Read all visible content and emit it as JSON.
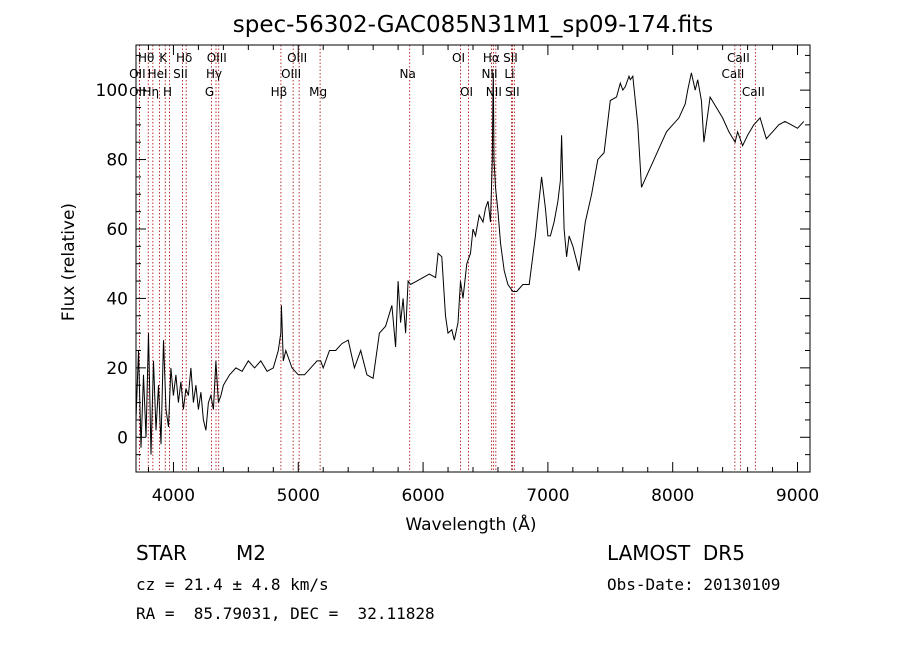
{
  "chart_data": {
    "type": "line",
    "title": "spec-56302-GAC085N31M1_sp09-174.fits",
    "xlabel": "Wavelength (Å)",
    "ylabel": "Flux (relative)",
    "xlim": [
      3700,
      9100
    ],
    "ylim": [
      -10,
      113
    ],
    "x_ticks": [
      4000,
      5000,
      6000,
      7000,
      8000,
      9000
    ],
    "y_ticks": [
      0,
      20,
      40,
      60,
      80,
      100
    ],
    "grid": false,
    "line_color": "#000000",
    "marker_color": "#aa0000",
    "series": [
      {
        "x": [
          3700,
          3720,
          3740,
          3760,
          3780,
          3800,
          3820,
          3840,
          3860,
          3880,
          3900,
          3920,
          3940,
          3960,
          3980,
          4000,
          4020,
          4040,
          4060,
          4080,
          4100,
          4120,
          4140,
          4160,
          4180,
          4200,
          4220,
          4240,
          4260,
          4280,
          4300,
          4320,
          4340,
          4360,
          4380,
          4400,
          4450,
          4500,
          4550,
          4600,
          4650,
          4700,
          4750,
          4800,
          4840,
          4860,
          4865,
          4880,
          4900,
          4950,
          5000,
          5050,
          5100,
          5150,
          5180,
          5200,
          5250,
          5300,
          5350,
          5400,
          5450,
          5500,
          5550,
          5600,
          5650,
          5700,
          5750,
          5780,
          5800,
          5820,
          5840,
          5860,
          5880,
          5900,
          5950,
          6000,
          6050,
          6100,
          6120,
          6150,
          6180,
          6200,
          6230,
          6250,
          6280,
          6300,
          6320,
          6350,
          6380,
          6400,
          6420,
          6450,
          6480,
          6500,
          6520,
          6540,
          6555,
          6560,
          6563,
          6568,
          6580,
          6600,
          6620,
          6650,
          6680,
          6700,
          6720,
          6750,
          6800,
          6850,
          6900,
          6920,
          6950,
          6980,
          7000,
          7020,
          7050,
          7080,
          7100,
          7110,
          7130,
          7150,
          7170,
          7200,
          7250,
          7300,
          7350,
          7400,
          7450,
          7500,
          7550,
          7580,
          7600,
          7620,
          7650,
          7660,
          7680,
          7700,
          7720,
          7750,
          7800,
          7850,
          7900,
          7950,
          8000,
          8050,
          8100,
          8120,
          8150,
          8180,
          8200,
          8230,
          8250,
          8300,
          8350,
          8400,
          8450,
          8500,
          8520,
          8540,
          8560,
          8600,
          8650,
          8700,
          8750,
          8800,
          8850,
          8900,
          8950,
          9000,
          9050
        ],
        "y": [
          5,
          25,
          -3,
          18,
          0,
          30,
          -5,
          22,
          2,
          15,
          -2,
          28,
          8,
          3,
          20,
          12,
          18,
          10,
          16,
          8,
          14,
          12,
          20,
          10,
          15,
          8,
          13,
          5,
          2,
          10,
          12,
          8,
          22,
          10,
          12,
          15,
          18,
          20,
          19,
          22,
          20,
          22,
          19,
          20,
          25,
          30,
          38,
          22,
          25,
          20,
          18,
          18,
          20,
          22,
          22,
          20,
          25,
          25,
          27,
          28,
          20,
          25,
          18,
          17,
          30,
          32,
          38,
          26,
          45,
          33,
          40,
          30,
          45,
          44,
          45,
          46,
          47,
          46,
          53,
          52,
          35,
          30,
          31,
          28,
          33,
          45,
          40,
          50,
          53,
          60,
          58,
          64,
          62,
          66,
          68,
          62,
          80,
          100,
          105,
          80,
          72,
          65,
          56,
          48,
          44,
          43,
          42,
          42,
          44,
          44,
          58,
          65,
          75,
          66,
          58,
          58,
          62,
          68,
          74,
          87,
          60,
          52,
          58,
          55,
          48,
          62,
          70,
          80,
          82,
          97,
          98,
          102,
          100,
          101,
          104,
          103,
          104,
          97,
          90,
          72,
          76,
          80,
          84,
          88,
          90,
          92,
          96,
          100,
          105,
          100,
          103,
          97,
          85,
          98,
          95,
          92,
          88,
          85,
          88,
          86,
          84,
          87,
          90,
          92,
          86,
          88,
          90,
          91,
          90,
          89,
          91
        ]
      }
    ],
    "lines": [
      {
        "name": "Hθ",
        "x": 3798,
        "row": 1
      },
      {
        "name": "OII",
        "x": 3727,
        "row": 2
      },
      {
        "name": "OII",
        "x": 3727,
        "row": 3
      },
      {
        "name": "K",
        "x": 3934,
        "row": 1
      },
      {
        "name": "HeI",
        "x": 3889,
        "row": 2
      },
      {
        "name": "Hη",
        "x": 3835,
        "row": 3
      },
      {
        "name": "Hδ",
        "x": 4102,
        "row": 1
      },
      {
        "name": "SII",
        "x": 4072,
        "row": 2
      },
      {
        "name": "H",
        "x": 3969,
        "row": 3
      },
      {
        "name": "OIII",
        "x": 4363,
        "row": 1
      },
      {
        "name": "Hγ",
        "x": 4341,
        "row": 2
      },
      {
        "name": "G",
        "x": 4305,
        "row": 3
      },
      {
        "name": "OIII",
        "x": 5007,
        "row": 1
      },
      {
        "name": "OIII",
        "x": 4959,
        "row": 2
      },
      {
        "name": "Hβ",
        "x": 4861,
        "row": 3
      },
      {
        "name": "Mg",
        "x": 5175,
        "row": 3
      },
      {
        "name": "Na",
        "x": 5893,
        "row": 2
      },
      {
        "name": "OI",
        "x": 6300,
        "row": 1
      },
      {
        "name": "OI",
        "x": 6364,
        "row": 3
      },
      {
        "name": "Hα",
        "x": 6563,
        "row": 1
      },
      {
        "name": "NII",
        "x": 6548,
        "row": 2
      },
      {
        "name": "NII",
        "x": 6583,
        "row": 3
      },
      {
        "name": "SII",
        "x": 6716,
        "row": 1
      },
      {
        "name": "Li",
        "x": 6708,
        "row": 2
      },
      {
        "name": "SII",
        "x": 6731,
        "row": 3
      },
      {
        "name": "CaII",
        "x": 8542,
        "row": 1
      },
      {
        "name": "CaII",
        "x": 8498,
        "row": 2
      },
      {
        "name": "CaII",
        "x": 8662,
        "row": 3
      }
    ]
  },
  "footer": {
    "object_type": "STAR",
    "subclass": "M2",
    "survey": "LAMOST  DR5",
    "cz": "cz = 21.4 ± 4.8 km/s",
    "obs_date": "Obs-Date: 20130109",
    "coords": "RA =  85.79031, DEC =  32.11828"
  }
}
